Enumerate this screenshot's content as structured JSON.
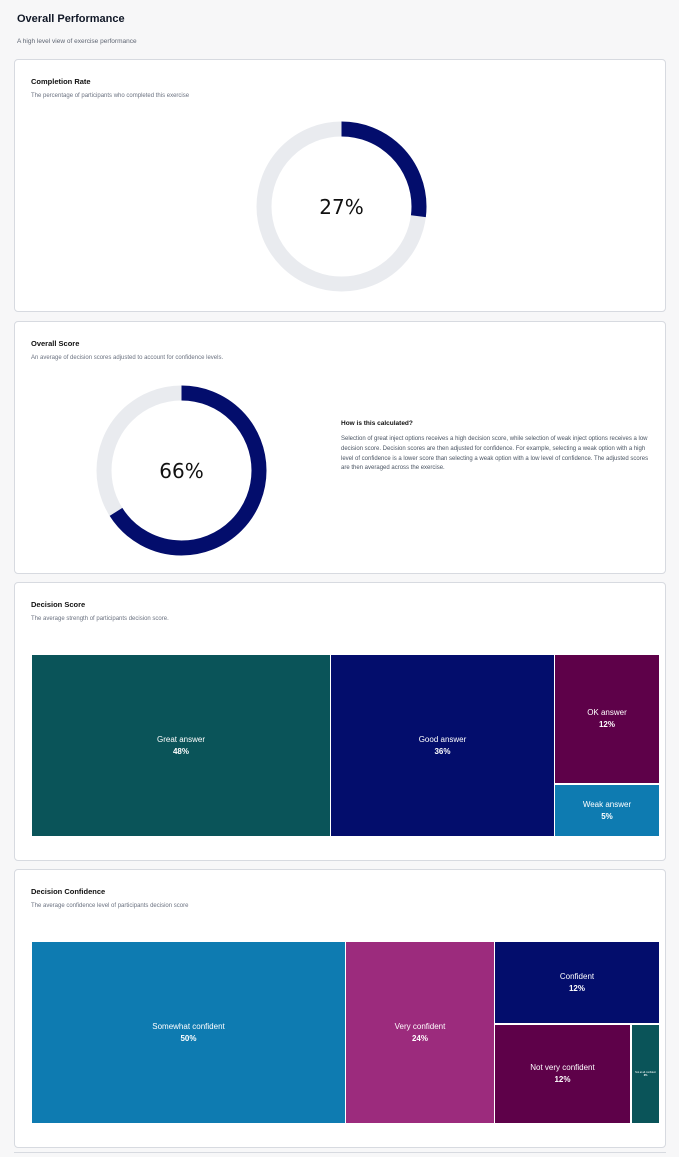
{
  "header": {
    "title": "Overall Performance",
    "subtitle": "A high level view of exercise performance"
  },
  "completion": {
    "title": "Completion Rate",
    "subtitle": "The percentage of participants who completed this exercise",
    "value_text": "27%",
    "fraction": 0.27,
    "color": "#030d6c",
    "track_color": "#e9ebef"
  },
  "overall_score": {
    "title": "Overall Score",
    "subtitle": "An average of decision scores adjusted to account for confidence levels.",
    "value_text": "66%",
    "fraction": 0.66,
    "color": "#030d6c",
    "track_color": "#e9ebef",
    "explain_title": "How is this calculated?",
    "explain_body": "Selection of great inject options receives a high decision score, while selection of weak inject options receives a low decision score. Decision scores are then adjusted for confidence. For example, selecting a weak option with a high level of confidence is a lower score than selecting a weak option with a low level of confidence. The adjusted scores are then averaged across the exercise."
  },
  "decision_score": {
    "title": "Decision Score",
    "subtitle": "The average strength of participants decision score.",
    "tiles": [
      {
        "label": "Great answer",
        "pct": "48%",
        "color": "#0a5459"
      },
      {
        "label": "Good answer",
        "pct": "36%",
        "color": "#030d6c"
      },
      {
        "label": "OK answer",
        "pct": "12%",
        "color": "#5e0149"
      },
      {
        "label": "Weak answer",
        "pct": "5%",
        "color": "#0e7bb1"
      }
    ]
  },
  "decision_confidence": {
    "title": "Decision Confidence",
    "subtitle": "The average confidence level of participants decision score",
    "tiles": [
      {
        "label": "Somewhat confident",
        "pct": "50%",
        "color": "#0e7bb1"
      },
      {
        "label": "Very confident",
        "pct": "24%",
        "color": "#9c2b7d"
      },
      {
        "label": "Confident",
        "pct": "12%",
        "color": "#030d6c"
      },
      {
        "label": "Not very confident",
        "pct": "12%",
        "color": "#5e0149"
      },
      {
        "label": "Not at all confident",
        "pct": "3%",
        "color": "#0a5459"
      }
    ]
  }
}
